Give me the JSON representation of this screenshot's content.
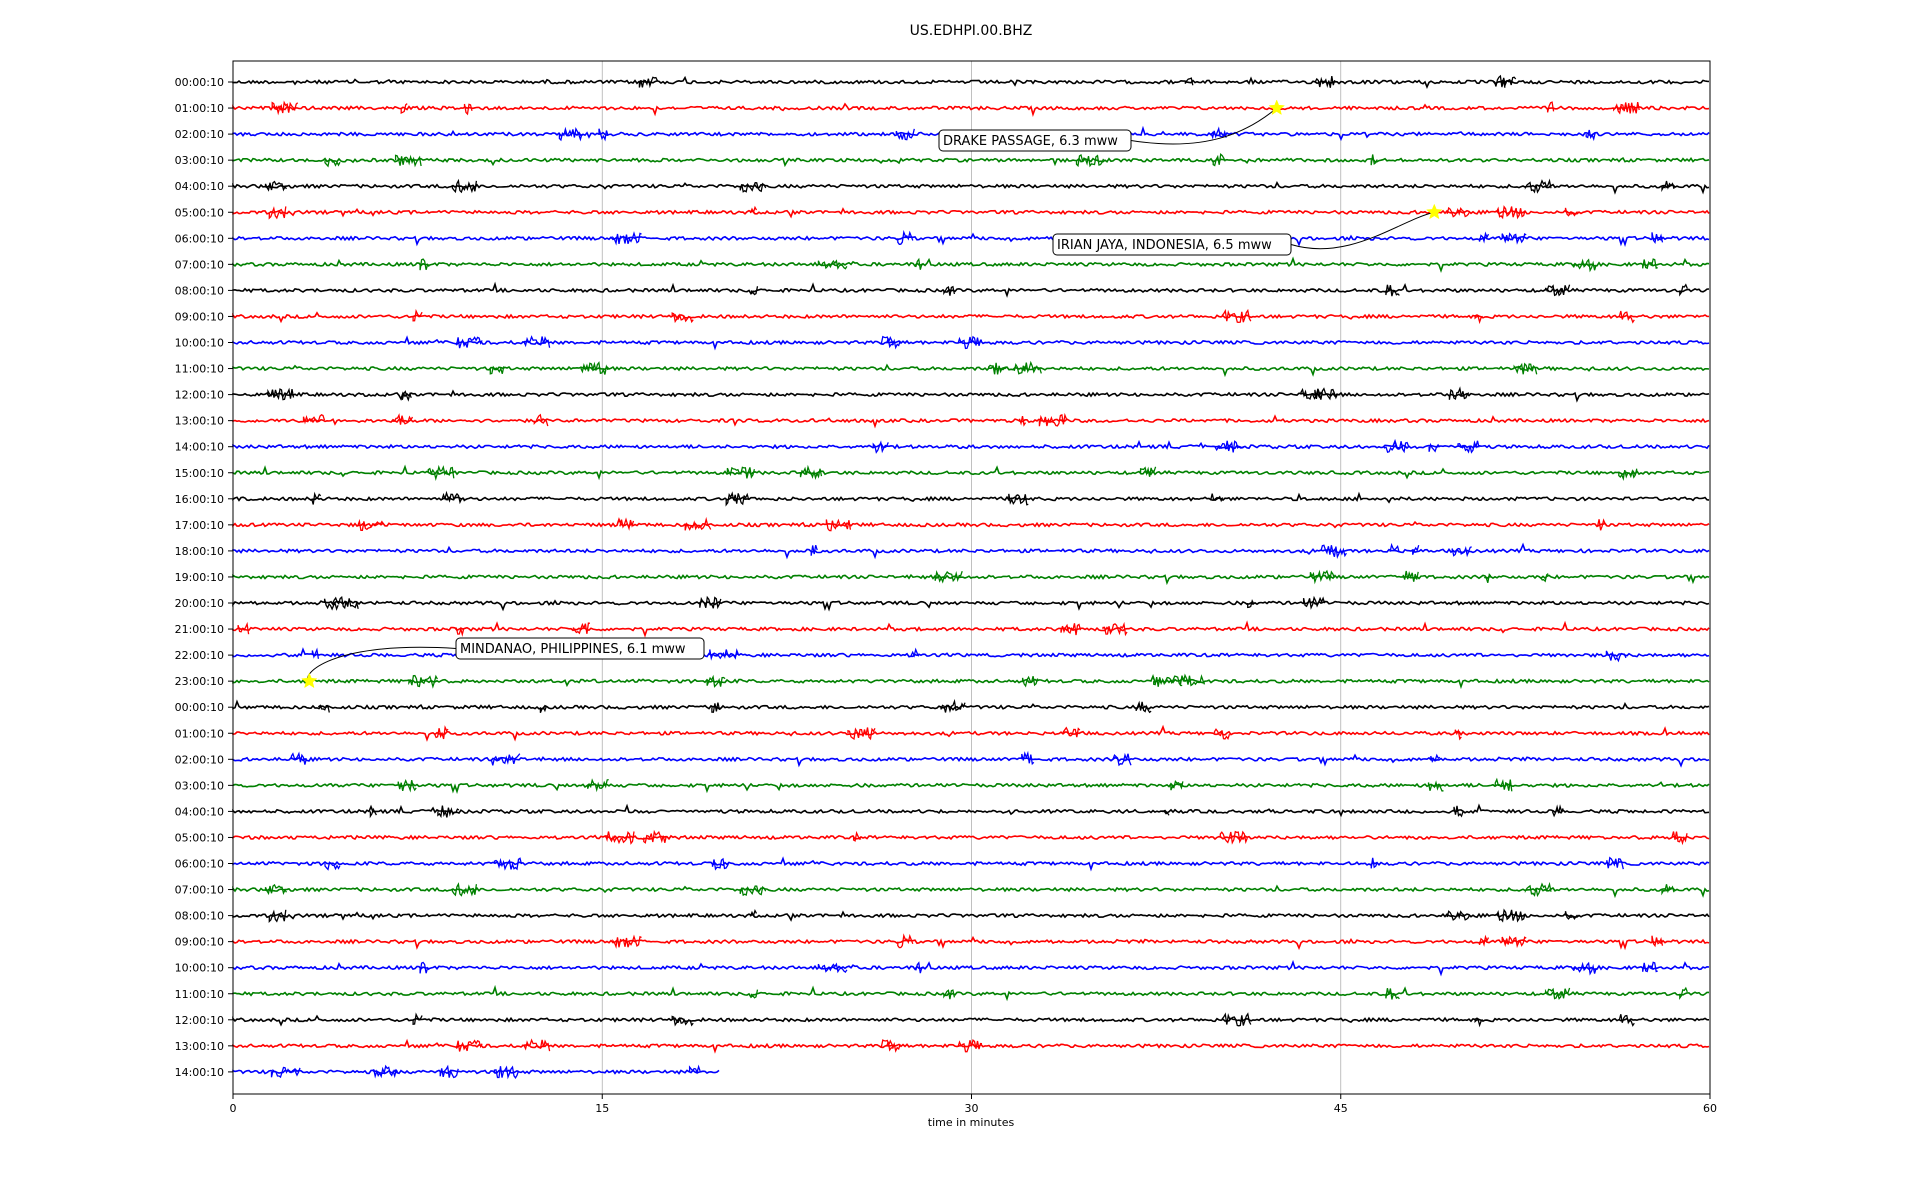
{
  "chart_data": {
    "type": "line",
    "title": "US.EDHPI.00.BHZ",
    "xlabel": "time in minutes",
    "ylabel": "",
    "xlim": [
      0,
      60
    ],
    "xticks": [
      0,
      15,
      30,
      45,
      60
    ],
    "grid": "vertical",
    "row_labels": [
      "00:00:10",
      "01:00:10",
      "02:00:10",
      "03:00:10",
      "04:00:10",
      "05:00:10",
      "06:00:10",
      "07:00:10",
      "08:00:10",
      "09:00:10",
      "10:00:10",
      "11:00:10",
      "12:00:10",
      "13:00:10",
      "14:00:10",
      "15:00:10",
      "16:00:10",
      "17:00:10",
      "18:00:10",
      "19:00:10",
      "20:00:10",
      "21:00:10",
      "22:00:10",
      "23:00:10",
      "00:00:10",
      "01:00:10",
      "02:00:10",
      "03:00:10",
      "04:00:10",
      "05:00:10",
      "06:00:10",
      "07:00:10",
      "08:00:10",
      "09:00:10",
      "10:00:10",
      "11:00:10",
      "12:00:10",
      "13:00:10",
      "14:00:10"
    ],
    "trace_colors": [
      "#000000",
      "#ff0000",
      "#0000ff",
      "#008000"
    ],
    "last_row_end_minute": 19.8,
    "events": [
      {
        "label": "DRAKE PASSAGE, 6.3 mww",
        "row": 1,
        "minute": 42.4
      },
      {
        "label": "IRIAN JAYA, INDONESIA, 6.5 mww",
        "row": 5,
        "minute": 48.8
      },
      {
        "label": "MINDANAO, PHILIPPINES, 6.1 mww",
        "row": 23,
        "minute": 3.1
      }
    ],
    "marker_color": "#ffff00"
  }
}
